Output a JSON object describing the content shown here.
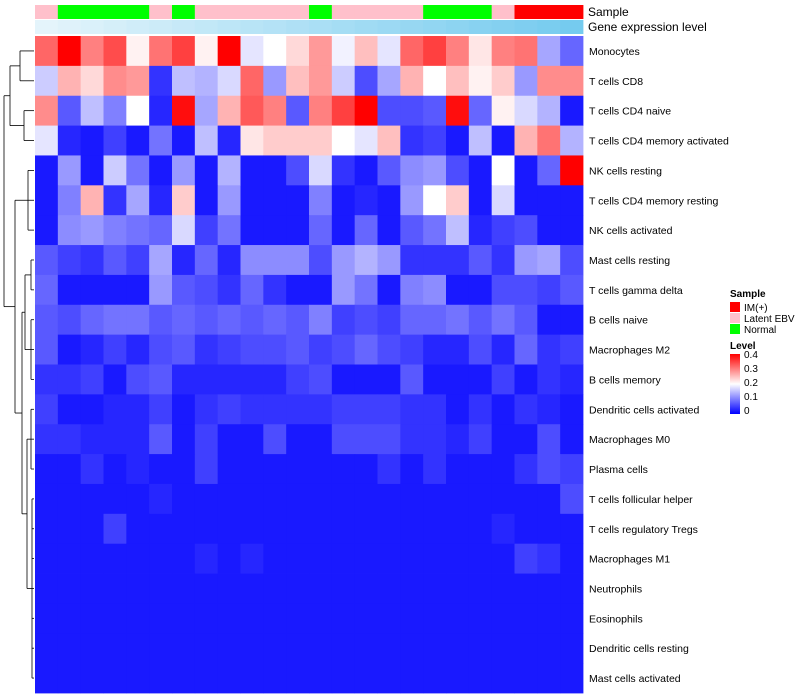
{
  "chart_data": {
    "type": "heatmap",
    "title": "",
    "annotation_labels": [
      "Sample",
      "Gene expression level"
    ],
    "rows": [
      "Monocytes",
      "T cells CD8",
      "T cells CD4 naive",
      "T cells CD4 memory activated",
      "NK cells resting",
      "T cells CD4 memory resting",
      "NK cells activated",
      "Mast cells resting",
      "T cells gamma delta",
      "B cells naive",
      "Macrophages M2",
      "B cells memory",
      "Dendritic cells activated",
      "Macrophages M0",
      "Plasma cells",
      "T cells follicular helper",
      "T cells regulatory  Tregs",
      "Macrophages M1",
      "Neutrophils",
      "Eosinophils",
      "Dendritic cells resting",
      "Mast cells activated"
    ],
    "sample_groups": [
      "Latent EBV",
      "Normal",
      "Normal",
      "Normal",
      "Normal",
      "Latent EBV",
      "Normal",
      "Latent EBV",
      "Latent EBV",
      "Latent EBV",
      "Latent EBV",
      "Latent EBV",
      "Normal",
      "Latent EBV",
      "Latent EBV",
      "Latent EBV",
      "Latent EBV",
      "Normal",
      "Normal",
      "Normal",
      "Latent EBV",
      "IM(+)",
      "IM(+)",
      "IM(+)"
    ],
    "gene_expression_level": [
      0.02,
      0.06,
      0.1,
      0.14,
      0.18,
      0.22,
      0.26,
      0.3,
      0.34,
      0.38,
      0.42,
      0.46,
      0.5,
      0.54,
      0.58,
      0.62,
      0.66,
      0.7,
      0.74,
      0.78,
      0.82,
      0.86,
      0.9,
      0.94
    ],
    "values": [
      [
        0.32,
        0.4,
        0.3,
        0.34,
        0.21,
        0.31,
        0.35,
        0.21,
        0.4,
        0.18,
        0.2,
        0.23,
        0.28,
        0.19,
        0.25,
        0.18,
        0.32,
        0.35,
        0.3,
        0.22,
        0.3,
        0.31,
        0.13,
        0.08
      ],
      [
        0.16,
        0.26,
        0.23,
        0.29,
        0.28,
        0.04,
        0.15,
        0.14,
        0.17,
        0.32,
        0.12,
        0.25,
        0.28,
        0.16,
        0.06,
        0.13,
        0.26,
        0.2,
        0.25,
        0.21,
        0.24,
        0.12,
        0.29,
        0.29
      ],
      [
        0.29,
        0.07,
        0.15,
        0.1,
        0.2,
        0.03,
        0.39,
        0.13,
        0.26,
        0.33,
        0.3,
        0.07,
        0.3,
        0.35,
        0.4,
        0.06,
        0.06,
        0.07,
        0.39,
        0.08,
        0.21,
        0.17,
        0.14,
        0.02
      ],
      [
        0.18,
        0.03,
        0.02,
        0.05,
        0.02,
        0.09,
        0.02,
        0.15,
        0.03,
        0.22,
        0.24,
        0.24,
        0.24,
        0.2,
        0.18,
        0.25,
        0.04,
        0.05,
        0.02,
        0.15,
        0.02,
        0.26,
        0.31,
        0.14
      ],
      [
        0.02,
        0.12,
        0.02,
        0.16,
        0.09,
        0.02,
        0.12,
        0.02,
        0.14,
        0.02,
        0.02,
        0.06,
        0.17,
        0.04,
        0.02,
        0.07,
        0.11,
        0.12,
        0.06,
        0.02,
        0.2,
        0.02,
        0.08,
        0.4
      ],
      [
        0.02,
        0.1,
        0.26,
        0.04,
        0.13,
        0.03,
        0.24,
        0.02,
        0.12,
        0.02,
        0.02,
        0.02,
        0.1,
        0.02,
        0.03,
        0.02,
        0.12,
        0.2,
        0.24,
        0.02,
        0.17,
        0.02,
        0.02,
        0.02
      ],
      [
        0.02,
        0.11,
        0.12,
        0.1,
        0.09,
        0.08,
        0.17,
        0.05,
        0.09,
        0.02,
        0.02,
        0.02,
        0.08,
        0.02,
        0.08,
        0.02,
        0.07,
        0.09,
        0.15,
        0.03,
        0.05,
        0.06,
        0.02,
        0.02
      ],
      [
        0.07,
        0.05,
        0.04,
        0.07,
        0.05,
        0.13,
        0.03,
        0.08,
        0.03,
        0.11,
        0.11,
        0.11,
        0.06,
        0.12,
        0.14,
        0.12,
        0.04,
        0.04,
        0.04,
        0.07,
        0.04,
        0.12,
        0.13,
        0.06
      ],
      [
        0.08,
        0.02,
        0.02,
        0.02,
        0.02,
        0.12,
        0.07,
        0.06,
        0.04,
        0.08,
        0.04,
        0.02,
        0.02,
        0.12,
        0.09,
        0.02,
        0.1,
        0.11,
        0.02,
        0.02,
        0.06,
        0.06,
        0.05,
        0.07
      ],
      [
        0.07,
        0.06,
        0.08,
        0.09,
        0.09,
        0.07,
        0.08,
        0.07,
        0.08,
        0.07,
        0.08,
        0.07,
        0.1,
        0.05,
        0.06,
        0.05,
        0.08,
        0.08,
        0.09,
        0.07,
        0.09,
        0.07,
        0.02,
        0.02
      ],
      [
        0.07,
        0.02,
        0.03,
        0.05,
        0.03,
        0.06,
        0.07,
        0.04,
        0.05,
        0.06,
        0.06,
        0.07,
        0.05,
        0.06,
        0.08,
        0.06,
        0.05,
        0.03,
        0.03,
        0.06,
        0.03,
        0.08,
        0.04,
        0.05
      ],
      [
        0.04,
        0.04,
        0.05,
        0.02,
        0.06,
        0.07,
        0.03,
        0.03,
        0.03,
        0.03,
        0.03,
        0.05,
        0.06,
        0.02,
        0.02,
        0.02,
        0.07,
        0.02,
        0.02,
        0.02,
        0.05,
        0.02,
        0.04,
        0.03
      ],
      [
        0.05,
        0.02,
        0.02,
        0.03,
        0.03,
        0.05,
        0.02,
        0.04,
        0.05,
        0.04,
        0.04,
        0.04,
        0.04,
        0.05,
        0.05,
        0.05,
        0.04,
        0.04,
        0.02,
        0.04,
        0.02,
        0.04,
        0.03,
        0.02
      ],
      [
        0.04,
        0.04,
        0.03,
        0.03,
        0.03,
        0.07,
        0.02,
        0.05,
        0.02,
        0.02,
        0.06,
        0.02,
        0.02,
        0.06,
        0.06,
        0.06,
        0.04,
        0.04,
        0.03,
        0.05,
        0.02,
        0.02,
        0.06,
        0.02
      ],
      [
        0.02,
        0.02,
        0.04,
        0.02,
        0.03,
        0.02,
        0.02,
        0.05,
        0.02,
        0.02,
        0.02,
        0.02,
        0.02,
        0.02,
        0.02,
        0.04,
        0.02,
        0.04,
        0.02,
        0.02,
        0.02,
        0.04,
        0.06,
        0.05
      ],
      [
        0.02,
        0.02,
        0.02,
        0.02,
        0.02,
        0.03,
        0.02,
        0.02,
        0.02,
        0.02,
        0.02,
        0.02,
        0.02,
        0.02,
        0.02,
        0.02,
        0.02,
        0.02,
        0.02,
        0.02,
        0.02,
        0.02,
        0.02,
        0.06
      ],
      [
        0.02,
        0.02,
        0.02,
        0.05,
        0.02,
        0.02,
        0.02,
        0.02,
        0.02,
        0.02,
        0.02,
        0.02,
        0.02,
        0.02,
        0.02,
        0.02,
        0.02,
        0.02,
        0.02,
        0.02,
        0.03,
        0.02,
        0.02,
        0.02
      ],
      [
        0.02,
        0.02,
        0.02,
        0.02,
        0.02,
        0.02,
        0.02,
        0.03,
        0.02,
        0.03,
        0.02,
        0.02,
        0.02,
        0.02,
        0.02,
        0.02,
        0.02,
        0.02,
        0.02,
        0.02,
        0.02,
        0.05,
        0.04,
        0.02
      ],
      [
        0.02,
        0.02,
        0.02,
        0.02,
        0.02,
        0.02,
        0.02,
        0.02,
        0.02,
        0.02,
        0.02,
        0.02,
        0.02,
        0.02,
        0.02,
        0.02,
        0.02,
        0.02,
        0.02,
        0.02,
        0.02,
        0.02,
        0.02,
        0.02
      ],
      [
        0.02,
        0.02,
        0.02,
        0.02,
        0.02,
        0.02,
        0.02,
        0.02,
        0.02,
        0.02,
        0.02,
        0.02,
        0.02,
        0.02,
        0.02,
        0.02,
        0.02,
        0.02,
        0.02,
        0.02,
        0.02,
        0.02,
        0.02,
        0.02
      ],
      [
        0.02,
        0.02,
        0.02,
        0.02,
        0.02,
        0.02,
        0.02,
        0.02,
        0.02,
        0.02,
        0.02,
        0.02,
        0.02,
        0.02,
        0.02,
        0.02,
        0.02,
        0.02,
        0.02,
        0.02,
        0.02,
        0.02,
        0.02,
        0.02
      ],
      [
        0.02,
        0.02,
        0.02,
        0.02,
        0.02,
        0.02,
        0.02,
        0.02,
        0.02,
        0.02,
        0.02,
        0.02,
        0.02,
        0.02,
        0.02,
        0.02,
        0.02,
        0.02,
        0.02,
        0.02,
        0.02,
        0.02,
        0.02,
        0.02
      ]
    ],
    "color_scale": {
      "low": "#0000ff",
      "mid": "#ffffff",
      "high": "#ff0000",
      "range": [
        0,
        0.4
      ],
      "midpoint": 0.2
    },
    "legend": {
      "position": "right",
      "sample_title": "Sample",
      "sample_items": [
        {
          "label": "IM(+)",
          "color": "#ff0000"
        },
        {
          "label": "Latent EBV",
          "color": "#ffc0cb"
        },
        {
          "label": "Normal",
          "color": "#00ff00"
        }
      ],
      "level_title": "Level",
      "level_ticks": [
        "0.4",
        "0.3",
        "0.2",
        "0.1",
        "0"
      ]
    },
    "gene_level_colors": {
      "low": "#e6f5fb",
      "high": "#6ec8ee"
    },
    "row_dendrogram": true
  }
}
